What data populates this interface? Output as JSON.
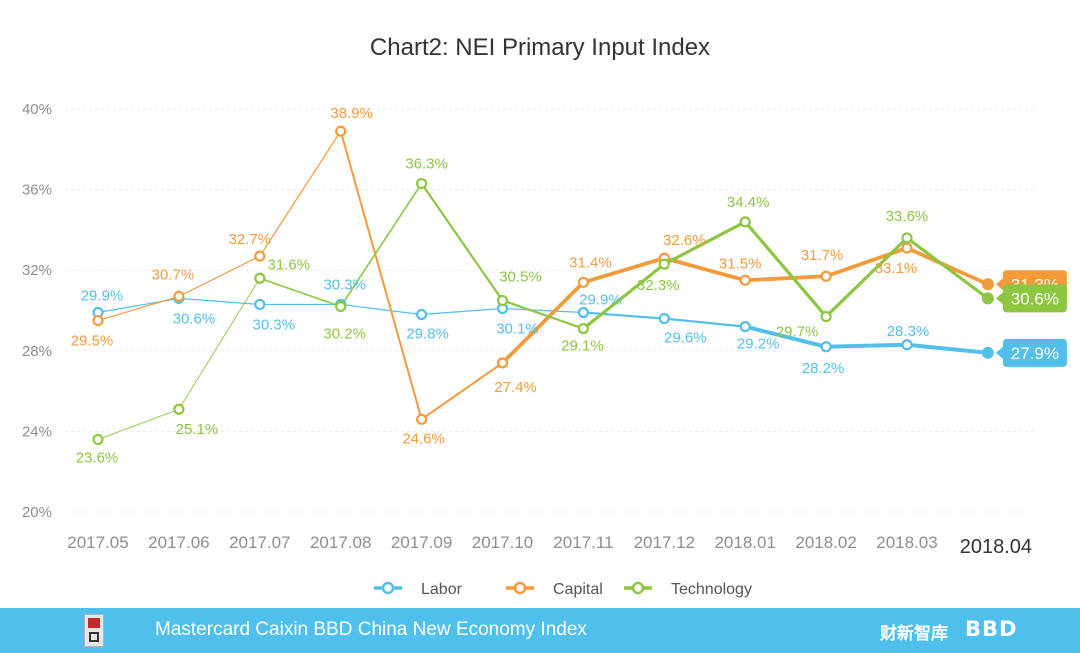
{
  "chart_data": {
    "type": "line",
    "title": "Chart2: NEI Primary Input Index",
    "categories": [
      "2017.05",
      "2017.06",
      "2017.07",
      "2017.08",
      "2017.09",
      "2017.10",
      "2017.11",
      "2017.12",
      "2018.01",
      "2018.02",
      "2018.03",
      "2018.04"
    ],
    "ylim": [
      20,
      40
    ],
    "yticks": [
      "20%",
      "24%",
      "28%",
      "32%",
      "36%",
      "40%"
    ],
    "ytick_values": [
      20,
      24,
      28,
      32,
      36,
      40
    ],
    "series": [
      {
        "name": "Labor",
        "color": "#52bfea",
        "values": [
          29.9,
          30.6,
          30.3,
          30.3,
          29.8,
          30.1,
          29.9,
          29.6,
          29.2,
          28.2,
          28.3,
          27.9
        ],
        "labels": [
          "29.9%",
          "30.6%",
          "30.3%",
          "30.3%",
          "29.8%",
          "30.1%",
          "29.9%",
          "29.6%",
          "29.2%",
          "28.2%",
          "28.3%",
          "27.9%"
        ]
      },
      {
        "name": "Capital",
        "color": "#f39a3b",
        "values": [
          29.5,
          30.7,
          32.7,
          38.9,
          24.6,
          27.4,
          31.4,
          32.6,
          31.5,
          31.7,
          33.1,
          31.3
        ],
        "labels": [
          "29.5%",
          "30.7%",
          "32.7%",
          "38.9%",
          "24.6%",
          "27.4%",
          "31.4%",
          "32.6%",
          "31.5%",
          "31.7%",
          "33.1%",
          "31.3%"
        ]
      },
      {
        "name": "Technology",
        "color": "#8dc641",
        "values": [
          23.6,
          25.1,
          31.6,
          30.2,
          36.3,
          30.5,
          29.1,
          32.3,
          34.4,
          29.7,
          33.6,
          30.6
        ],
        "labels": [
          "23.6%",
          "25.1%",
          "31.6%",
          "30.2%",
          "36.3%",
          "30.5%",
          "29.1%",
          "32.3%",
          "34.4%",
          "29.7%",
          "33.6%",
          "30.6%"
        ]
      }
    ],
    "legend_position": "bottom-center"
  },
  "footer": {
    "title": "Mastercard Caixin BBD China New Economy Index",
    "brand_cn": "财新智库",
    "brand_bbd": "BBD"
  }
}
